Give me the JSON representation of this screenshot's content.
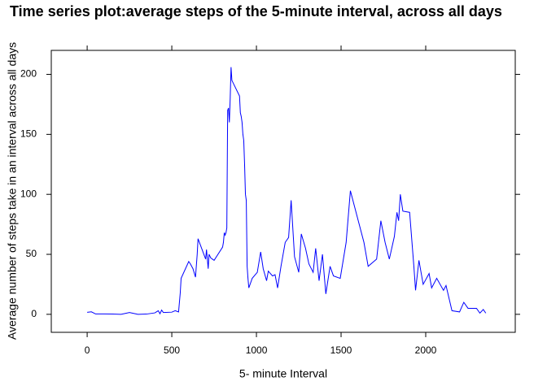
{
  "chart_data": {
    "type": "line",
    "title": "Time series plot:average steps of the 5-minute interval, across all days",
    "xlabel": "5- minute Interval",
    "ylabel": "Average number of steps take in an interval across all days",
    "color": "#0000ff",
    "x": [
      0,
      25,
      50,
      100,
      150,
      200,
      250,
      300,
      350,
      400,
      420,
      430,
      440,
      450,
      500,
      520,
      540,
      550,
      555,
      600,
      610,
      625,
      640,
      650,
      655,
      700,
      705,
      715,
      720,
      730,
      740,
      750,
      800,
      805,
      810,
      815,
      820,
      825,
      830,
      835,
      840,
      845,
      850,
      855,
      900,
      905,
      910,
      915,
      920,
      925,
      930,
      935,
      940,
      945,
      950,
      955,
      975,
      1005,
      1025,
      1040,
      1060,
      1070,
      1095,
      1110,
      1125,
      1145,
      1170,
      1190,
      1205,
      1225,
      1250,
      1265,
      1290,
      1310,
      1335,
      1350,
      1370,
      1390,
      1410,
      1435,
      1455,
      1495,
      1530,
      1555,
      1635,
      1660,
      1710,
      1735,
      1760,
      1785,
      1815,
      1830,
      1840,
      1850,
      1865,
      1905,
      1930,
      1940,
      1960,
      1985,
      2020,
      2035,
      2065,
      2105,
      2120,
      2140,
      2155,
      2200,
      2225,
      2250,
      2300,
      2320,
      2340,
      2355
    ],
    "values": [
      1.7,
      2.1,
      0.3,
      0.3,
      0.2,
      0,
      1.5,
      0,
      0.2,
      1.2,
      3,
      0.5,
      3.5,
      1.5,
      1.8,
      3,
      2,
      18,
      30,
      44,
      42,
      38,
      31,
      50,
      63,
      46,
      54,
      38,
      50,
      47,
      46,
      45,
      56,
      60,
      68,
      66,
      68,
      72,
      170,
      172,
      160,
      180,
      206,
      195,
      182,
      168,
      165,
      160,
      150,
      145,
      125,
      100,
      95,
      40,
      30,
      22,
      30,
      35,
      52,
      38,
      28,
      36,
      32,
      33,
      22,
      40,
      60,
      64,
      95,
      48,
      35,
      67,
      55,
      42,
      35,
      55,
      28,
      50,
      17,
      40,
      32,
      30,
      60,
      103,
      60,
      40,
      46,
      78,
      60,
      46,
      65,
      85,
      78,
      100,
      86,
      85,
      40,
      20,
      45,
      25,
      34,
      22,
      30,
      20,
      24,
      12,
      3,
      2,
      10,
      5,
      5,
      1,
      4,
      1
    ],
    "xlim": [
      -212,
      2529
    ],
    "ylim": [
      -15,
      220
    ],
    "xticks": [
      0,
      500,
      1000,
      1500,
      2000
    ],
    "yticks": [
      0,
      50,
      100,
      150,
      200
    ]
  }
}
